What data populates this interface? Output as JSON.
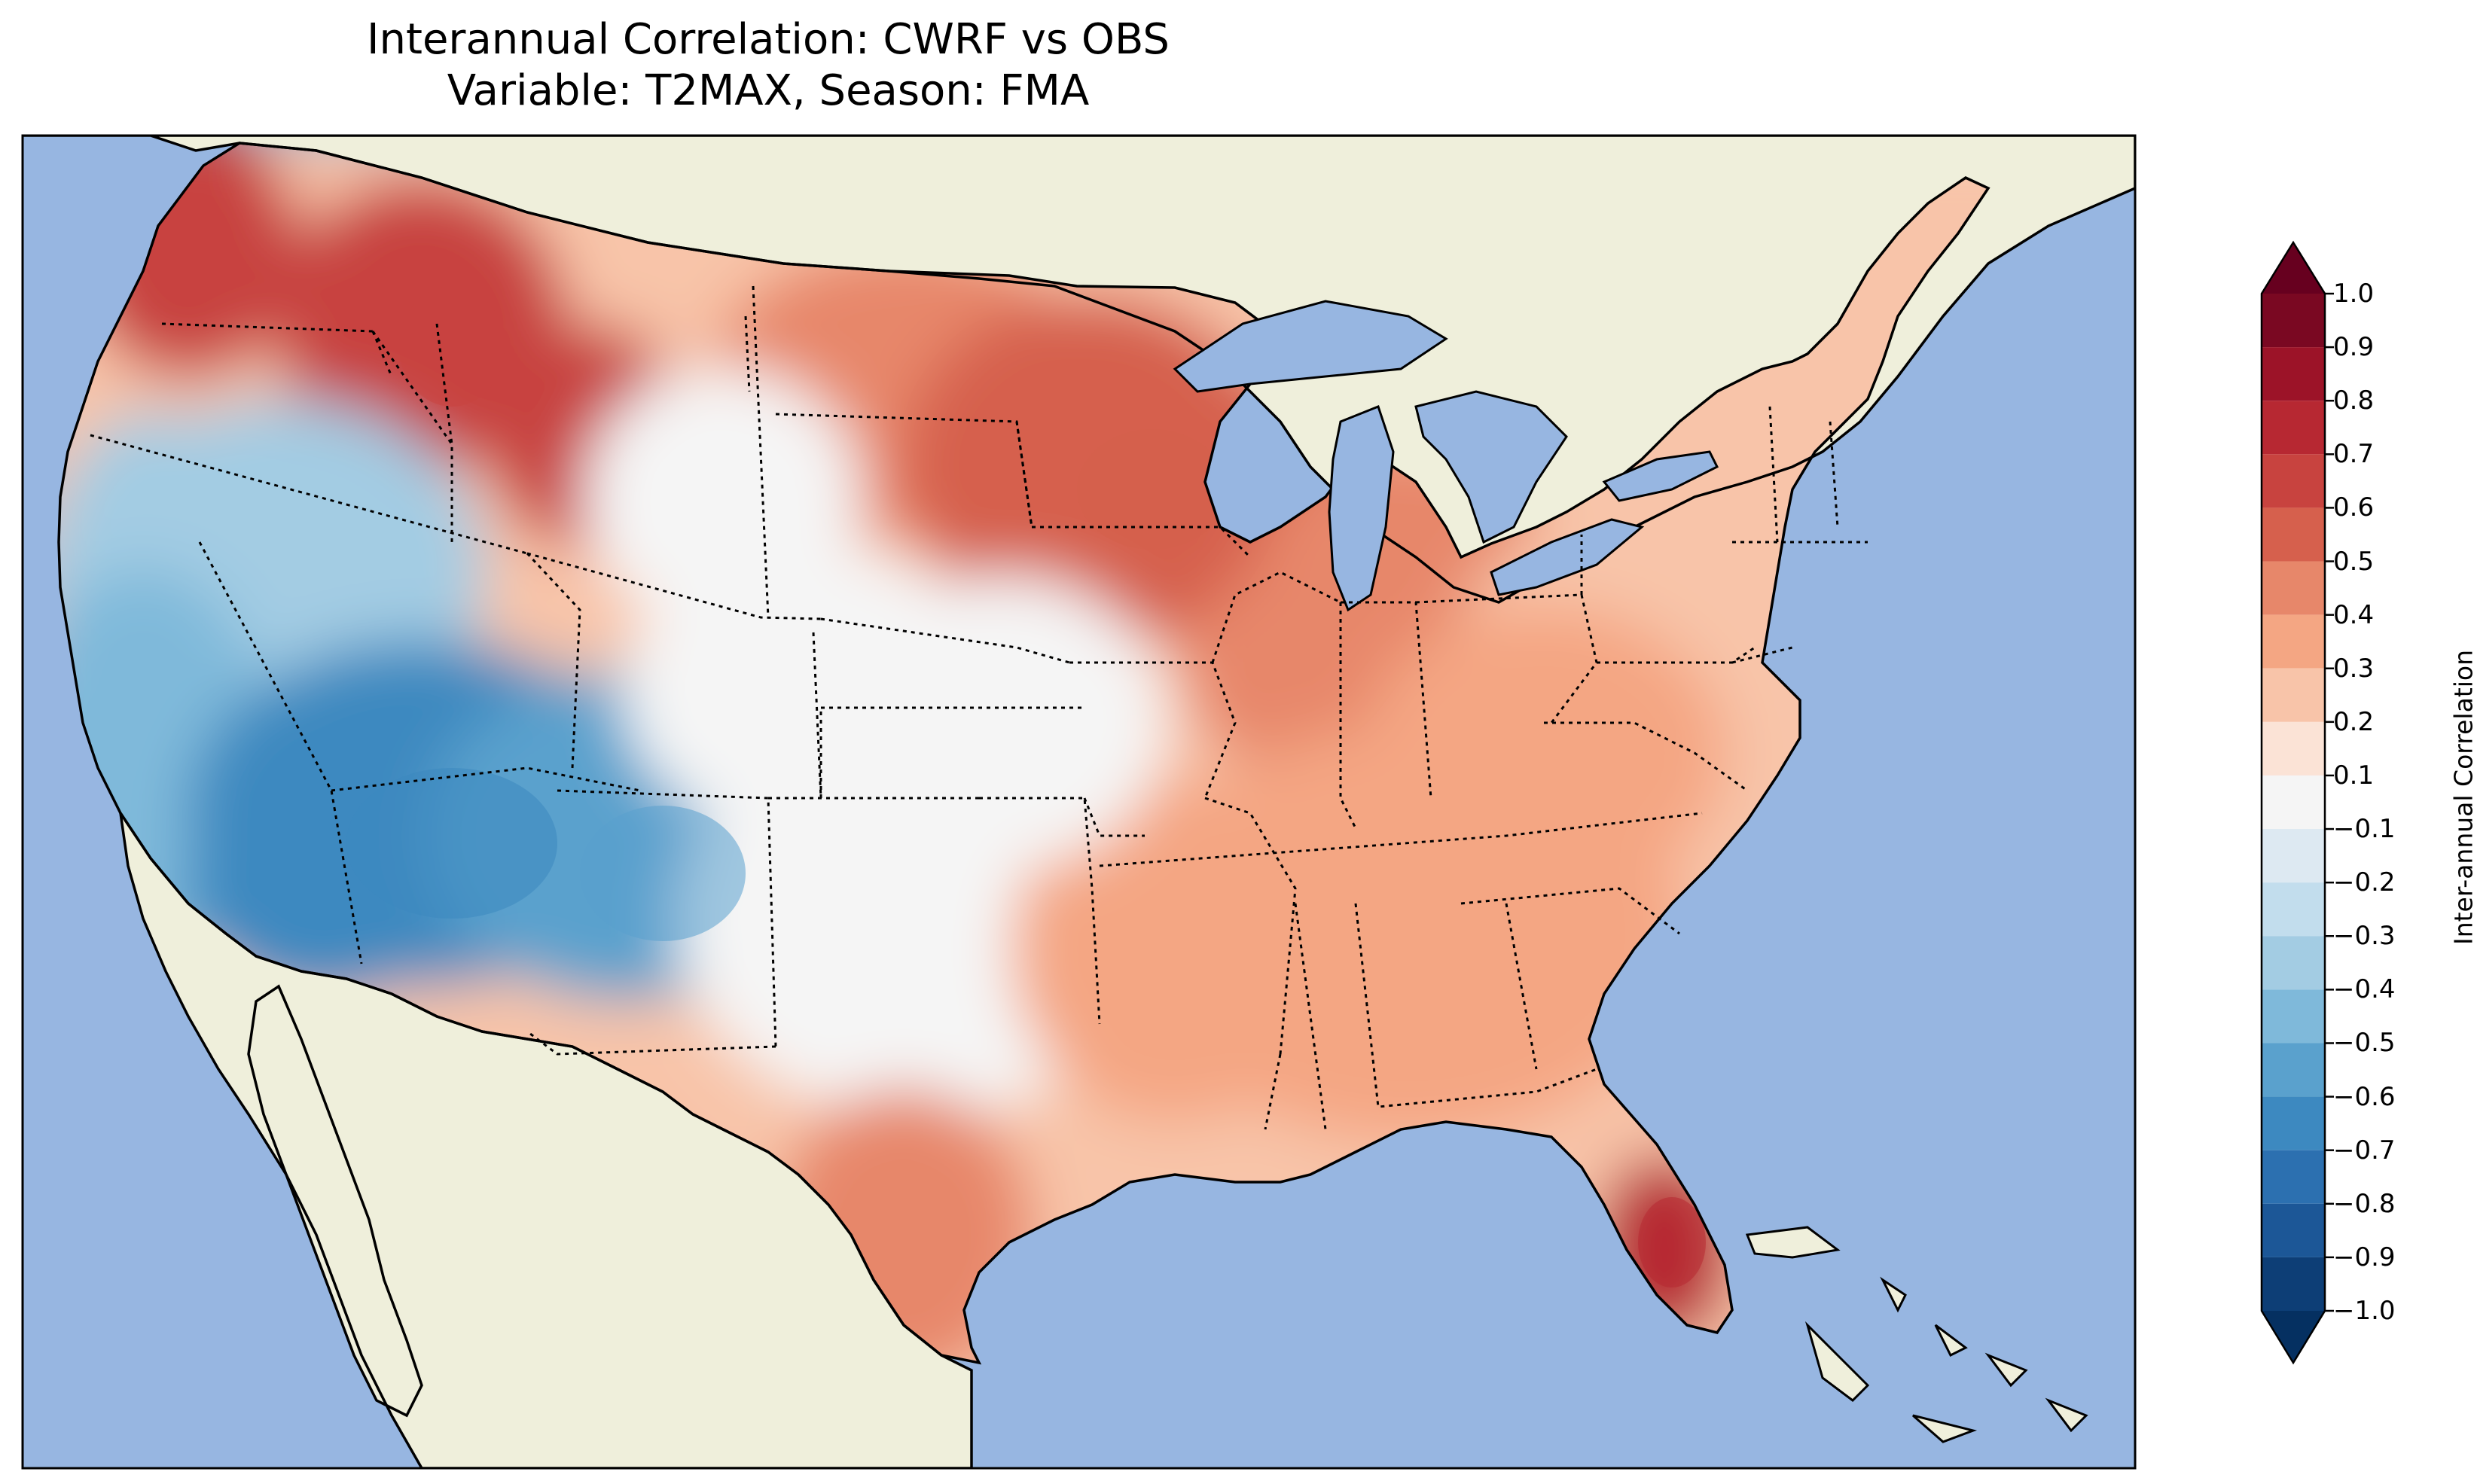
{
  "title": {
    "line1": "Interannual Correlation: CWRF vs OBS",
    "line2": "Variable: T2MAX, Season: FMA"
  },
  "colors": {
    "ocean": "#97b6e1",
    "land_outside": "#efefdb",
    "border": "#000000"
  },
  "regions": [
    {
      "name": "pacific-northwest-coast",
      "value": 0.6
    },
    {
      "name": "northern-rockies",
      "value": 0.6
    },
    {
      "name": "northern-plains",
      "value": 0.45
    },
    {
      "name": "upper-midwest",
      "value": 0.55
    },
    {
      "name": "great-lakes-michigan",
      "value": 0.45
    },
    {
      "name": "northeast",
      "value": 0.25
    },
    {
      "name": "great-basin",
      "value": -0.4
    },
    {
      "name": "california",
      "value": -0.45
    },
    {
      "name": "southwest-desert",
      "value": -0.65
    },
    {
      "name": "four-corners",
      "value": -0.6
    },
    {
      "name": "southern-plains",
      "value": -0.1
    },
    {
      "name": "southeast",
      "value": 0.35
    },
    {
      "name": "florida-south",
      "value": 0.75
    },
    {
      "name": "south-texas",
      "value": 0.45
    },
    {
      "name": "central-plains",
      "value": 0.0
    }
  ],
  "colorbar": {
    "label": "Inter-annual Correlation",
    "ticks": [
      "1.0",
      "0.9",
      "0.8",
      "0.7",
      "0.6",
      "0.5",
      "0.4",
      "0.3",
      "0.2",
      "0.1",
      "−0.1",
      "−0.2",
      "−0.3",
      "−0.4",
      "−0.5",
      "−0.6",
      "−0.7",
      "−0.8",
      "−0.9",
      "−1.0"
    ],
    "bins": [
      {
        "min": 0.9,
        "max": 1.0,
        "color": "#7a0822"
      },
      {
        "min": 0.8,
        "max": 0.9,
        "color": "#9c1328"
      },
      {
        "min": 0.7,
        "max": 0.8,
        "color": "#b72832"
      },
      {
        "min": 0.6,
        "max": 0.7,
        "color": "#c8433f"
      },
      {
        "min": 0.5,
        "max": 0.6,
        "color": "#d6604d"
      },
      {
        "min": 0.4,
        "max": 0.5,
        "color": "#e7876a"
      },
      {
        "min": 0.3,
        "max": 0.4,
        "color": "#f4a683"
      },
      {
        "min": 0.2,
        "max": 0.3,
        "color": "#f8c4a9"
      },
      {
        "min": 0.1,
        "max": 0.2,
        "color": "#fbe3d6"
      },
      {
        "min": -0.1,
        "max": 0.1,
        "color": "#f5f5f5"
      },
      {
        "min": -0.2,
        "max": -0.1,
        "color": "#dde9f2"
      },
      {
        "min": -0.3,
        "max": -0.2,
        "color": "#c2dded"
      },
      {
        "min": -0.4,
        "max": -0.3,
        "color": "#a3cce3"
      },
      {
        "min": -0.5,
        "max": -0.4,
        "color": "#7fb9da"
      },
      {
        "min": -0.6,
        "max": -0.5,
        "color": "#5aa1cd"
      },
      {
        "min": -0.7,
        "max": -0.6,
        "color": "#3d89c0"
      },
      {
        "min": -0.8,
        "max": -0.7,
        "color": "#2c70b0"
      },
      {
        "min": -0.9,
        "max": -0.8,
        "color": "#1c5797"
      },
      {
        "min": -1.0,
        "max": -0.9,
        "color": "#0d3e76"
      }
    ],
    "extend_max_color": "#67001f",
    "extend_min_color": "#053061"
  }
}
